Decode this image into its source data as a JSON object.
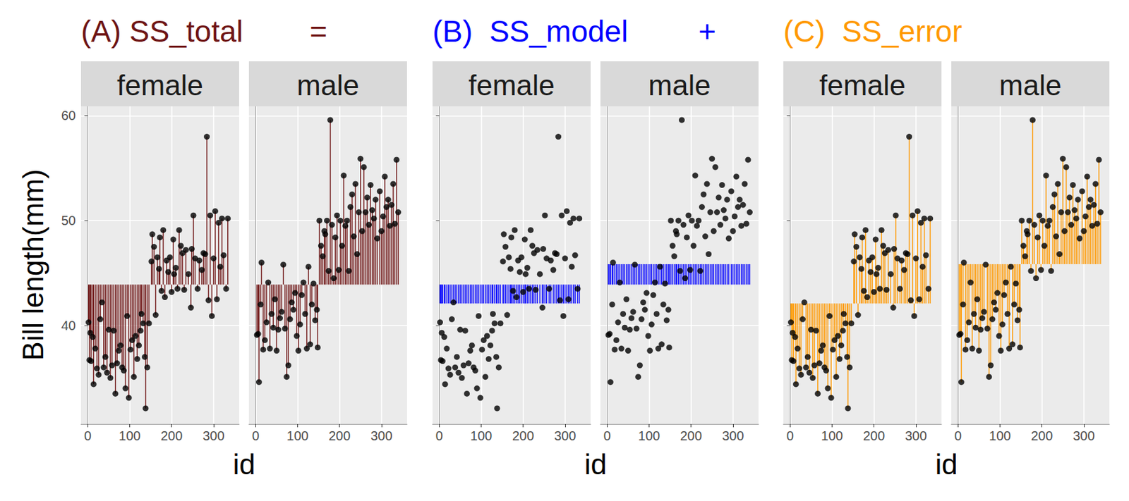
{
  "chart_data": {
    "type": "scatter",
    "y_label": "Bill length(mm)",
    "x_label": "id",
    "xlim": [
      -16,
      361
    ],
    "xticks": [
      0,
      100,
      200,
      300
    ],
    "ylim": [
      30.6,
      60.9
    ],
    "yticks": [
      40,
      50,
      60
    ],
    "grid": true,
    "marker": "circle",
    "color": "#000000",
    "grand_mean": 43.9,
    "panels": [
      {
        "title": "(A) SS_total",
        "sign": "=",
        "color": "#6e1414",
        "segments": "total",
        "tick_labels": true
      },
      {
        "title": "(B)  SS_model",
        "sign": "+",
        "color": "#0000ff",
        "segments": "model",
        "tick_labels": "x"
      },
      {
        "title": "(C)  SS_error",
        "color": "#ff9900",
        "segments": "error",
        "tick_labels": "x"
      }
    ],
    "series": [
      {
        "name": "female",
        "group_mean": 42.1,
        "x": [
          2,
          4,
          6,
          8,
          12,
          14,
          18,
          22,
          26,
          30,
          34,
          38,
          42,
          46,
          50,
          54,
          58,
          62,
          66,
          70,
          74,
          78,
          82,
          86,
          90,
          94,
          98,
          102,
          106,
          110,
          114,
          118,
          122,
          126,
          128,
          132,
          136,
          138,
          142,
          146,
          152,
          154,
          158,
          162,
          166,
          170,
          172,
          176,
          180,
          184,
          188,
          192,
          196,
          200,
          204,
          206,
          210,
          214,
          218,
          222,
          226,
          230,
          234,
          240,
          246,
          248,
          252,
          256,
          262,
          266,
          272,
          276,
          280,
          284,
          288,
          292,
          296,
          300,
          304,
          308,
          312,
          316,
          320,
          324,
          330,
          334
        ],
        "values": [
          40.3,
          36.7,
          39.3,
          36.6,
          38.9,
          34.4,
          37.8,
          35.9,
          35.3,
          40.6,
          42.2,
          36.0,
          37.0,
          35.5,
          39.6,
          35.0,
          36.2,
          39.5,
          33.5,
          36.4,
          37.6,
          38.1,
          36.0,
          35.7,
          34.0,
          40.9,
          33.1,
          37.7,
          38.6,
          35.1,
          39.0,
          36.8,
          38.1,
          39.5,
          41.1,
          40.2,
          37.0,
          32.1,
          36.0,
          40.2,
          46.1,
          48.7,
          47.5,
          41.0,
          46.5,
          45.4,
          48.4,
          43.3,
          49.1,
          42.7,
          46.2,
          45.1,
          46.5,
          43.2,
          48.2,
          44.9,
          45.5,
          43.5,
          49.1,
          47.6,
          46.9,
          43.4,
          47.2,
          44.9,
          41.7,
          47.3,
          50.5,
          46.4,
          43.5,
          46.2,
          45.3,
          46.9,
          46.8,
          58.0,
          42.4,
          50.5,
          40.9,
          46.4,
          50.9,
          42.5,
          49.8,
          45.6,
          50.2,
          46.7,
          43.5,
          50.2
        ]
      },
      {
        "name": "male",
        "group_mean": 45.85,
        "x": [
          3,
          6,
          8,
          12,
          14,
          18,
          22,
          26,
          30,
          34,
          38,
          42,
          46,
          50,
          54,
          58,
          62,
          66,
          70,
          74,
          78,
          82,
          86,
          90,
          94,
          98,
          102,
          106,
          110,
          114,
          118,
          122,
          126,
          130,
          134,
          138,
          142,
          146,
          148,
          152,
          156,
          160,
          164,
          166,
          170,
          174,
          178,
          182,
          186,
          190,
          194,
          198,
          202,
          206,
          210,
          214,
          218,
          222,
          226,
          230,
          234,
          238,
          242,
          246,
          250,
          254,
          258,
          262,
          266,
          270,
          274,
          278,
          282,
          286,
          290,
          296,
          300,
          304,
          308,
          312,
          316,
          320,
          324,
          328,
          332,
          336,
          340
        ],
        "values": [
          39.1,
          39.2,
          34.6,
          42.0,
          46.0,
          37.7,
          38.6,
          40.3,
          44.1,
          37.8,
          41.1,
          39.8,
          42.5,
          37.6,
          39.6,
          40.7,
          41.3,
          45.8,
          39.7,
          35.1,
          36.2,
          40.6,
          42.2,
          41.5,
          43.1,
          39.0,
          37.6,
          40.1,
          42.9,
          44.1,
          41.1,
          37.8,
          45.6,
          38.2,
          42.0,
          44.0,
          40.5,
          41.5,
          37.9,
          50.0,
          47.6,
          46.6,
          49.0,
          48.7,
          50.0,
          45.2,
          59.6,
          49.6,
          44.5,
          48.4,
          50.5,
          45.3,
          50.0,
          47.6,
          54.3,
          49.5,
          50.0,
          45.2,
          51.3,
          52.5,
          48.5,
          53.5,
          46.8,
          50.8,
          55.9,
          49.0,
          55.1,
          50.8,
          52.2,
          49.6,
          53.4,
          51.0,
          50.2,
          52.0,
          48.3,
          52.8,
          49.0,
          50.4,
          54.2,
          51.3,
          52.0,
          49.5,
          51.5,
          53.5,
          49.7,
          55.8,
          50.8
        ]
      }
    ]
  }
}
